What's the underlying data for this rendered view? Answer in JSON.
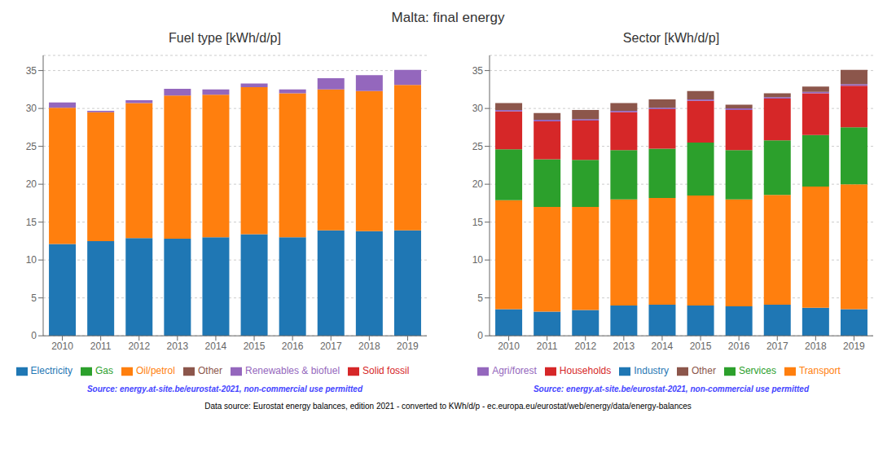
{
  "title": "Malta: final energy",
  "annotations": [
    "Data source: Eurostat energy balances, edition 2021 - converted to KWh/d/p - ec.europa.eu/eurostat/web/energy/data/energy-balances"
  ],
  "chart_data": [
    {
      "type": "bar",
      "stacked": true,
      "title": "Fuel type [kWh/d/p]",
      "annotations": [
        "Source: energy.at-site.be/eurostat-2021, non-commercial use permitted"
      ],
      "categories": [
        2010,
        2011,
        2012,
        2013,
        2014,
        2015,
        2016,
        2017,
        2018,
        2019
      ],
      "series": [
        {
          "name": "Electricity",
          "color": "#1f77b4",
          "values": [
            12.1,
            12.5,
            12.9,
            12.8,
            13.0,
            13.4,
            13.0,
            13.9,
            13.8,
            13.9
          ]
        },
        {
          "name": "Oil/petrol",
          "color": "#ff7f0e",
          "values": [
            18.0,
            17.0,
            17.8,
            18.9,
            18.8,
            19.4,
            19.0,
            18.6,
            18.5,
            19.2
          ]
        },
        {
          "name": "Gas",
          "color": "#2ca02c",
          "values": [
            0.0,
            0.0,
            0.0,
            0.0,
            0.0,
            0.0,
            0.0,
            0.0,
            0.0,
            0.0
          ]
        },
        {
          "name": "Solid fossil",
          "color": "#d62728",
          "values": [
            0.0,
            0.0,
            0.0,
            0.0,
            0.0,
            0.0,
            0.0,
            0.0,
            0.0,
            0.0
          ]
        },
        {
          "name": "Renewables & biofuel",
          "color": "#9467bd",
          "values": [
            0.7,
            0.2,
            0.4,
            0.9,
            0.7,
            0.5,
            0.5,
            1.5,
            2.1,
            2.0
          ]
        },
        {
          "name": "Other",
          "color": "#8c564b",
          "values": [
            0.0,
            0.0,
            0.0,
            0.0,
            0.0,
            0.0,
            0.0,
            0.0,
            0.0,
            0.0
          ]
        }
      ],
      "ylim": [
        0,
        37
      ],
      "yticks": [
        0,
        5,
        10,
        15,
        20,
        25,
        30,
        35
      ],
      "grid": true,
      "legend": "bottom"
    },
    {
      "type": "bar",
      "stacked": true,
      "title": "Sector [kWh/d/p]",
      "annotations": [
        "Source: energy.at-site.be/eurostat-2021, non-commercial use permitted"
      ],
      "categories": [
        2010,
        2011,
        2012,
        2013,
        2014,
        2015,
        2016,
        2017,
        2018,
        2019
      ],
      "series": [
        {
          "name": "Industry",
          "color": "#1f77b4",
          "values": [
            3.5,
            3.2,
            3.4,
            4.0,
            4.1,
            4.0,
            3.9,
            4.1,
            3.7,
            3.5
          ]
        },
        {
          "name": "Transport",
          "color": "#ff7f0e",
          "values": [
            14.4,
            13.8,
            13.6,
            14.0,
            14.1,
            14.5,
            14.1,
            14.5,
            16.0,
            16.5
          ]
        },
        {
          "name": "Services",
          "color": "#2ca02c",
          "values": [
            6.7,
            6.3,
            6.2,
            6.5,
            6.5,
            7.0,
            6.5,
            7.2,
            6.8,
            7.5
          ]
        },
        {
          "name": "Households",
          "color": "#d62728",
          "values": [
            5.0,
            5.0,
            5.2,
            5.0,
            5.2,
            5.5,
            5.3,
            5.5,
            5.5,
            5.5
          ]
        },
        {
          "name": "Agri/forest",
          "color": "#9467bd",
          "values": [
            0.2,
            0.2,
            0.2,
            0.2,
            0.2,
            0.2,
            0.2,
            0.2,
            0.2,
            0.2
          ]
        },
        {
          "name": "Other",
          "color": "#8c564b",
          "values": [
            0.9,
            0.9,
            1.2,
            1.0,
            1.1,
            1.1,
            0.5,
            0.5,
            0.7,
            1.9
          ]
        }
      ],
      "ylim": [
        0,
        37
      ],
      "yticks": [
        0,
        5,
        10,
        15,
        20,
        25,
        30,
        35
      ],
      "grid": true,
      "legend": "bottom"
    }
  ]
}
